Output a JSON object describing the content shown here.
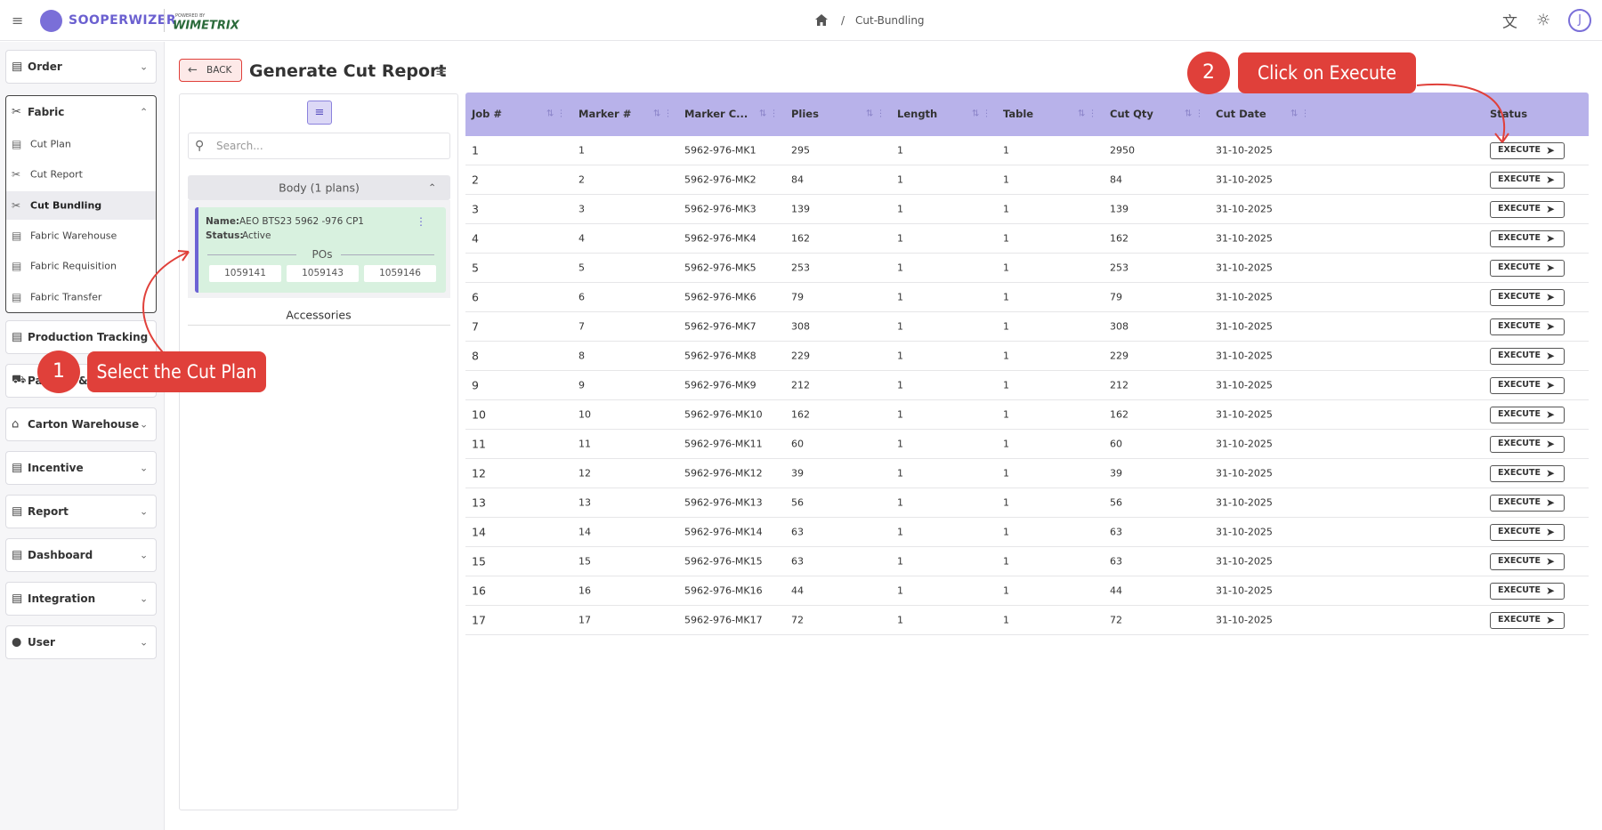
{
  "header": {
    "logo": "SOOPERWIZER",
    "powered_by": "POWERED BY",
    "brand": "WIMETRIX",
    "breadcrumb_separator": "/",
    "breadcrumb": "Cut-Bundling"
  },
  "sidebar": {
    "groups": [
      {
        "label": "Order"
      },
      {
        "label": "Fabric",
        "items": [
          "Cut Plan",
          "Cut Report",
          "Cut Bundling",
          "Fabric Warehouse",
          "Fabric Requisition",
          "Fabric Transfer"
        ]
      },
      {
        "label": "Production Tracking"
      },
      {
        "label": "Packing & Shipping"
      },
      {
        "label": "Carton Warehouse"
      },
      {
        "label": "Incentive"
      },
      {
        "label": "Report"
      },
      {
        "label": "Dashboard"
      },
      {
        "label": "Integration"
      },
      {
        "label": "User"
      }
    ]
  },
  "page": {
    "back": "BACK",
    "title": "Generate Cut Report"
  },
  "plans": {
    "search_placeholder": "Search...",
    "group": "Body (1 plans)",
    "card": {
      "name_label": "Name:",
      "name": "AEO BTS23 5962 -976 CP1",
      "status_label": "Status:",
      "status": "Active",
      "pos_label": "POs",
      "pos": [
        "1059141",
        "1059143",
        "1059146"
      ]
    },
    "accessories": "Accessories"
  },
  "table": {
    "columns": [
      "Job #",
      "Marker #",
      "Marker C...",
      "Plies",
      "Length",
      "Table",
      "Cut Qty",
      "Cut Date",
      "Status"
    ],
    "action": "EXECUTE",
    "rows": [
      [
        "1",
        "1",
        "5962-976-MK1",
        "295",
        "1",
        "1",
        "2950",
        "31-10-2025"
      ],
      [
        "2",
        "2",
        "5962-976-MK2",
        "84",
        "1",
        "1",
        "84",
        "31-10-2025"
      ],
      [
        "3",
        "3",
        "5962-976-MK3",
        "139",
        "1",
        "1",
        "139",
        "31-10-2025"
      ],
      [
        "4",
        "4",
        "5962-976-MK4",
        "162",
        "1",
        "1",
        "162",
        "31-10-2025"
      ],
      [
        "5",
        "5",
        "5962-976-MK5",
        "253",
        "1",
        "1",
        "253",
        "31-10-2025"
      ],
      [
        "6",
        "6",
        "5962-976-MK6",
        "79",
        "1",
        "1",
        "79",
        "31-10-2025"
      ],
      [
        "7",
        "7",
        "5962-976-MK7",
        "308",
        "1",
        "1",
        "308",
        "31-10-2025"
      ],
      [
        "8",
        "8",
        "5962-976-MK8",
        "229",
        "1",
        "1",
        "229",
        "31-10-2025"
      ],
      [
        "9",
        "9",
        "5962-976-MK9",
        "212",
        "1",
        "1",
        "212",
        "31-10-2025"
      ],
      [
        "10",
        "10",
        "5962-976-MK10",
        "162",
        "1",
        "1",
        "162",
        "31-10-2025"
      ],
      [
        "11",
        "11",
        "5962-976-MK11",
        "60",
        "1",
        "1",
        "60",
        "31-10-2025"
      ],
      [
        "12",
        "12",
        "5962-976-MK12",
        "39",
        "1",
        "1",
        "39",
        "31-10-2025"
      ],
      [
        "13",
        "13",
        "5962-976-MK13",
        "56",
        "1",
        "1",
        "56",
        "31-10-2025"
      ],
      [
        "14",
        "14",
        "5962-976-MK14",
        "63",
        "1",
        "1",
        "63",
        "31-10-2025"
      ],
      [
        "15",
        "15",
        "5962-976-MK15",
        "63",
        "1",
        "1",
        "63",
        "31-10-2025"
      ],
      [
        "16",
        "16",
        "5962-976-MK16",
        "44",
        "1",
        "1",
        "44",
        "31-10-2025"
      ],
      [
        "17",
        "17",
        "5962-976-MK17",
        "72",
        "1",
        "1",
        "72",
        "31-10-2025"
      ]
    ]
  },
  "annotations": [
    {
      "number": "1",
      "text": "Select the Cut Plan"
    },
    {
      "number": "2",
      "text": "Click on Execute"
    }
  ]
}
